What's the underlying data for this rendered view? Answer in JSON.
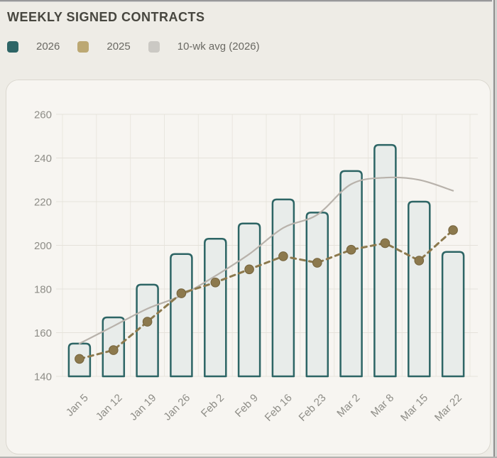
{
  "header": {
    "title": "WEEKLY SIGNED CONTRACTS"
  },
  "legend": [
    {
      "label": "2026",
      "swatch_color": "#2e6566"
    },
    {
      "label": "2025",
      "swatch_color": "#bca873"
    },
    {
      "label": "10-wk avg (2026)",
      "swatch_color": "#cbc9c4"
    }
  ],
  "chart_data": {
    "type": "bar",
    "title": "WEEKLY SIGNED CONTRACTS",
    "categories": [
      "Jan 5",
      "Jan 12",
      "Jan 19",
      "Jan 26",
      "Feb 2",
      "Feb 9",
      "Feb 16",
      "Feb 23",
      "Mar 2",
      "Mar 8",
      "Mar 15",
      "Mar 22"
    ],
    "series": [
      {
        "name": "2026",
        "type": "bar",
        "values": [
          155,
          167,
          182,
          196,
          203,
          210,
          221,
          215,
          234,
          246,
          220,
          197
        ]
      },
      {
        "name": "2025",
        "type": "line",
        "style": "dashed-with-markers",
        "values": [
          148,
          152,
          165,
          178,
          183,
          189,
          195,
          192,
          198,
          201,
          193,
          207
        ]
      },
      {
        "name": "10-wk avg (2026)",
        "type": "line",
        "style": "smooth",
        "values": [
          155,
          163,
          171,
          177,
          186,
          196,
          208,
          214,
          228,
          231,
          230,
          225
        ]
      }
    ],
    "xlabel": "",
    "ylabel": "",
    "ylim": [
      140,
      260
    ],
    "yticks": [
      140,
      160,
      180,
      200,
      220,
      240,
      260
    ],
    "grid": true,
    "x_tick_rotation": -45,
    "legend_position": "top-left"
  },
  "colors": {
    "page_bg": "#eeece6",
    "panel_bg": "#f7f5f1",
    "panel_border": "#dbd8d0",
    "grid_line": "#e5e2da",
    "bar_fill": "#e8ecea",
    "bar_stroke": "#2d6565",
    "line_2025": "#8c794d",
    "line_2025_marker_stroke": "#74633c",
    "line_avg": "#b8b2ab",
    "title_text": "#47463f",
    "legend_text": "#6a6963",
    "tick_text": "#8e8d87"
  }
}
